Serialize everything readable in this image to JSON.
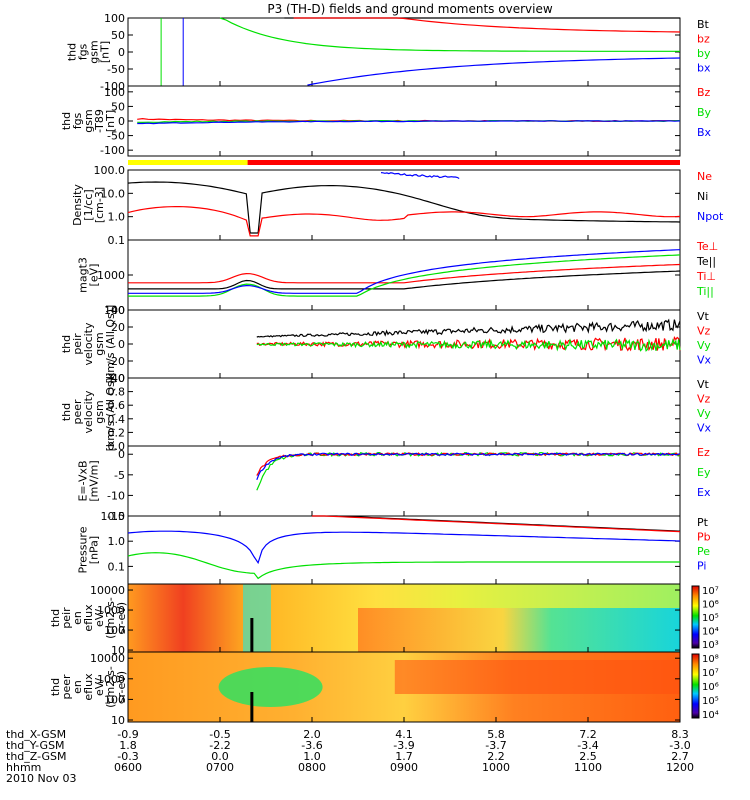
{
  "title": "P3 (TH-D) fields and ground moments overview",
  "colors": {
    "black": "#000000",
    "red": "#ff0000",
    "green": "#00e000",
    "blue": "#0000ff",
    "yellow": "#ffff00"
  },
  "chart_data": {
    "type": "line",
    "title": "P3 (TH-D) fields and ground moments overview",
    "x_axis": {
      "tick_times": [
        "0600",
        "0700",
        "0800",
        "0900",
        "1000",
        "1100",
        "1200"
      ],
      "rows": [
        {
          "label": "thd_X-GSM",
          "values": [
            "-0.9",
            "-0.5",
            "2.0",
            "4.1",
            "5.8",
            "7.2",
            "8.3"
          ]
        },
        {
          "label": "thd_Y-GSM",
          "values": [
            "1.8",
            "-2.2",
            "-3.6",
            "-3.9",
            "-3.7",
            "-3.4",
            "-3.0"
          ]
        },
        {
          "label": "thd_Z-GSM",
          "values": [
            "-0.3",
            "0.0",
            "1.0",
            "1.7",
            "2.2",
            "2.5",
            "2.7"
          ]
        },
        {
          "label": "hhmm",
          "values": [
            "0600",
            "0700",
            "0800",
            "0900",
            "1000",
            "1100",
            "1200"
          ]
        }
      ],
      "date": "2010 Nov 03"
    },
    "panels": [
      {
        "id": "fgs",
        "ylabel": [
          "thd",
          "fgs",
          "gsm",
          "[nT]"
        ],
        "scale": "linear",
        "ylim": [
          -100,
          100
        ],
        "yticks": [
          "100",
          "50",
          "0",
          "-50",
          "-100"
        ],
        "legend": [
          {
            "name": "Bt",
            "color": "#000000"
          },
          {
            "name": "bz",
            "color": "#ff0000"
          },
          {
            "name": "by",
            "color": "#00e000"
          },
          {
            "name": "bx",
            "color": "#0000ff"
          }
        ]
      },
      {
        "id": "fgs_dc",
        "ylabel": [
          "thd",
          "fgs",
          "gsm",
          "-T89",
          "[nT]"
        ],
        "scale": "linear",
        "ylim": [
          -120,
          120
        ],
        "yticks": [
          "100",
          "50",
          "0",
          "-50",
          "-100"
        ],
        "legend": [
          {
            "name": "Bz",
            "color": "#ff0000"
          },
          {
            "name": "By",
            "color": "#00e000"
          },
          {
            "name": "Bx",
            "color": "#0000ff"
          }
        ]
      },
      {
        "id": "density",
        "ylabel": [
          "Density",
          "[1/cc]",
          "[cm-3]"
        ],
        "scale": "log",
        "ylim": [
          0.1,
          100
        ],
        "yticks": [
          "100.0",
          "10.0",
          "1.0",
          "0.1"
        ],
        "legend": [
          {
            "name": "Ne",
            "color": "#ff0000"
          },
          {
            "name": "Ni",
            "color": "#000000"
          },
          {
            "name": "Npot",
            "color": "#0000ff"
          }
        ]
      },
      {
        "id": "temp",
        "ylabel": [
          "magt3",
          "[eV]"
        ],
        "scale": "log",
        "ylim": [
          100,
          10000
        ],
        "yticks": [
          "1000",
          "100"
        ],
        "legend": [
          {
            "name": "Te⊥",
            "color": "#ff0000"
          },
          {
            "name": "Te||",
            "color": "#000000"
          },
          {
            "name": "Ti⊥",
            "color": "#ff0000"
          },
          {
            "name": "Ti||",
            "color": "#00e000"
          }
        ]
      },
      {
        "id": "peir_vel",
        "ylabel": [
          "thd",
          "peir",
          "velocity",
          "gsm",
          "[km/s (All Qs)]"
        ],
        "scale": "linear",
        "ylim": [
          -40,
          40
        ],
        "yticks": [
          "40",
          "20",
          "0",
          "-20",
          "-40"
        ],
        "legend": [
          {
            "name": "Vt",
            "color": "#000000"
          },
          {
            "name": "Vz",
            "color": "#ff0000"
          },
          {
            "name": "Vy",
            "color": "#00e000"
          },
          {
            "name": "Vx",
            "color": "#0000ff"
          }
        ]
      },
      {
        "id": "peer_vel",
        "ylabel": [
          "thd",
          "peer",
          "velocity",
          "gsm",
          "[km/s (All Qs)]"
        ],
        "scale": "linear",
        "ylim": [
          0,
          1
        ],
        "yticks": [
          "1.0",
          "0.8",
          "0.6",
          "0.4",
          "0.2",
          "0.0"
        ],
        "legend": [
          {
            "name": "Vt",
            "color": "#000000"
          },
          {
            "name": "Vz",
            "color": "#ff0000"
          },
          {
            "name": "Vy",
            "color": "#00e000"
          },
          {
            "name": "Vx",
            "color": "#0000ff"
          }
        ]
      },
      {
        "id": "efield",
        "ylabel": [
          "E=-VxB",
          "[mV/m]"
        ],
        "scale": "linear",
        "ylim": [
          -15,
          2
        ],
        "yticks": [
          "0",
          "-5",
          "-10",
          "-15"
        ],
        "legend": [
          {
            "name": "Ez",
            "color": "#ff0000"
          },
          {
            "name": "Ey",
            "color": "#00e000"
          },
          {
            "name": "Ex",
            "color": "#0000ff"
          }
        ]
      },
      {
        "id": "pressure",
        "ylabel": [
          "Pressure",
          "[nPa]"
        ],
        "scale": "log",
        "ylim": [
          0.02,
          10
        ],
        "yticks": [
          "10.0",
          "1.0",
          "0.1"
        ],
        "legend": [
          {
            "name": "Pt",
            "color": "#000000"
          },
          {
            "name": "Pb",
            "color": "#ff0000"
          },
          {
            "name": "Pe",
            "color": "#00e000"
          },
          {
            "name": "Pi",
            "color": "#0000ff"
          }
        ]
      },
      {
        "id": "peir_en",
        "ylabel": [
          "thd",
          "peir",
          "en",
          "eflux",
          "eV/",
          "(cm2-s-",
          "sr-eV)"
        ],
        "scale": "log",
        "ylim": [
          8,
          20000
        ],
        "yticks": [
          "10000",
          "1000",
          "100",
          "10"
        ],
        "colorbar": [
          "10⁷",
          "10⁶",
          "10⁵",
          "10⁴",
          "10³"
        ]
      },
      {
        "id": "peer_en",
        "ylabel": [
          "thd",
          "peer",
          "en",
          "eflux",
          "eV/",
          "(cm2-s-",
          "sr-eV)"
        ],
        "scale": "log",
        "ylim": [
          8,
          20000
        ],
        "yticks": [
          "10000",
          "1000",
          "100",
          "10"
        ],
        "colorbar": [
          "10⁸",
          "10⁷",
          "10⁶",
          "10⁵",
          "10⁴"
        ]
      }
    ]
  }
}
